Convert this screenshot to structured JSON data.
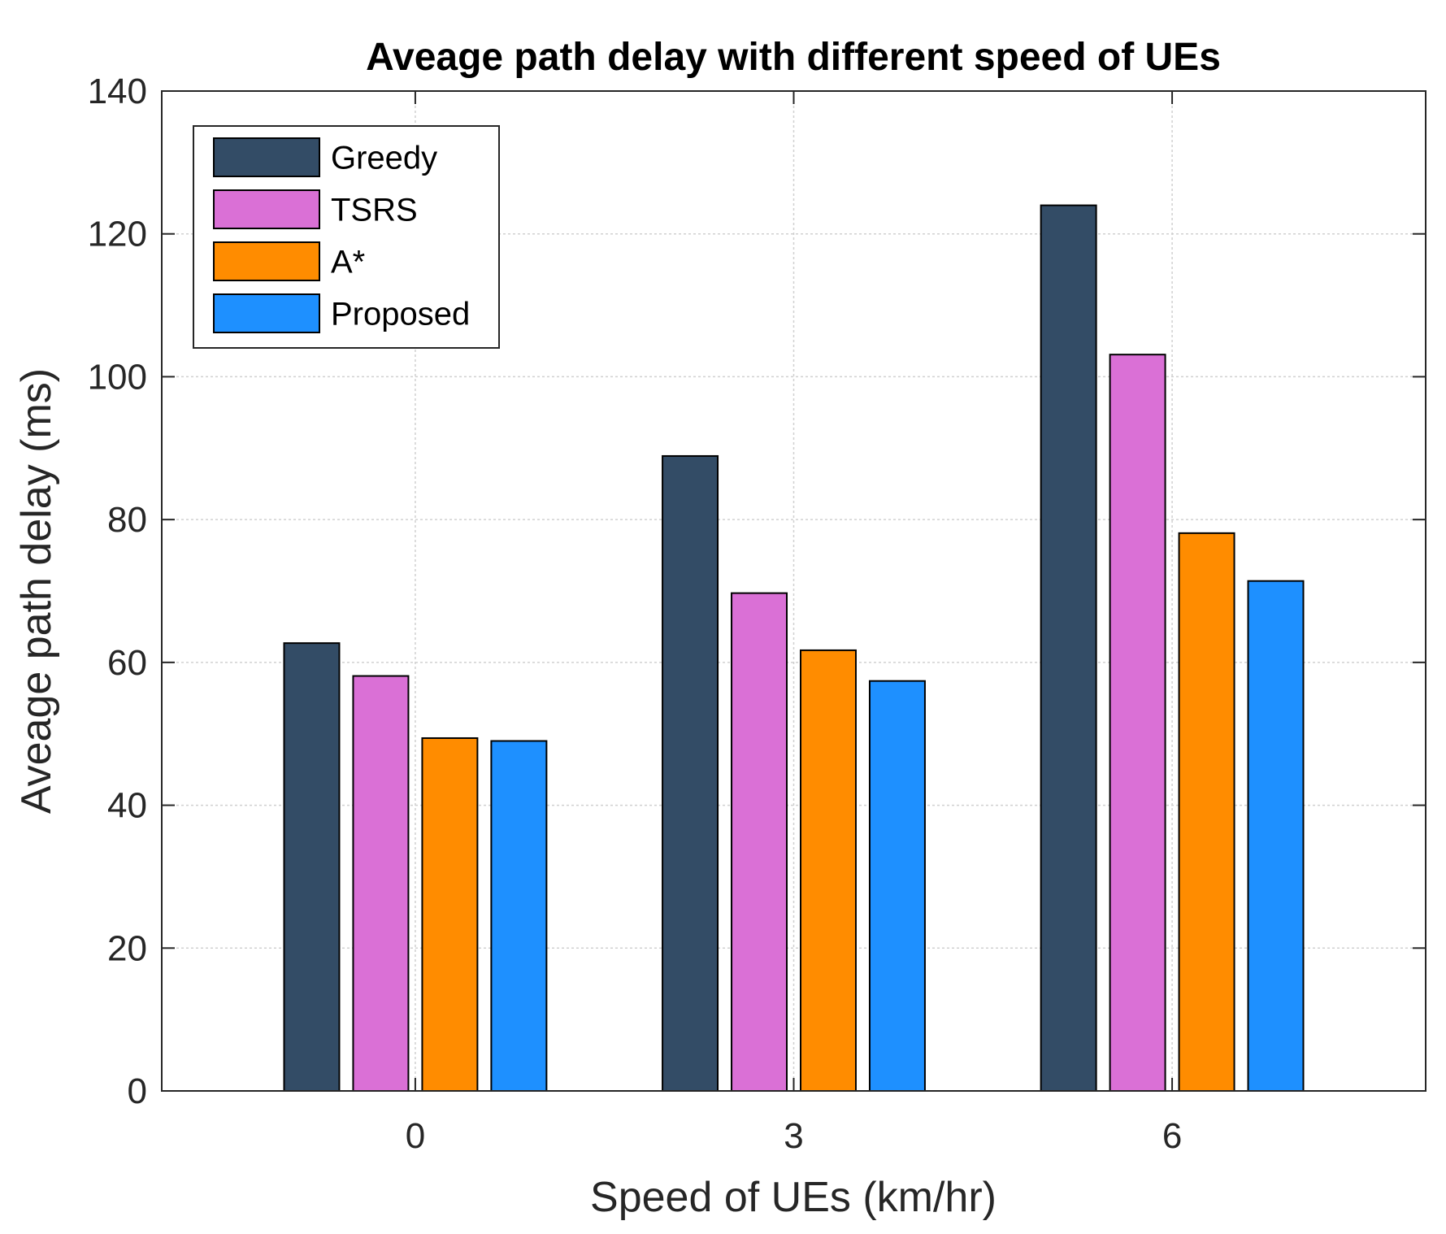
{
  "chart_data": {
    "type": "bar",
    "title": "Aveage path delay with different speed of UEs",
    "xlabel": "Speed of UEs (km/hr)",
    "ylabel": "Aveage path delay (ms)",
    "categories": [
      "0",
      "3",
      "6"
    ],
    "ylim": [
      0,
      140
    ],
    "yticks": [
      0,
      20,
      40,
      60,
      80,
      100,
      120,
      140
    ],
    "grid": true,
    "legend_position": "top-left",
    "series": [
      {
        "name": "Greedy",
        "color": "#334C66",
        "values": [
          62.7,
          88.9,
          124.0
        ]
      },
      {
        "name": "TSRS",
        "color": "#DA70D6",
        "values": [
          58.1,
          69.7,
          103.1
        ]
      },
      {
        "name": "A*",
        "color": "#FF8C00",
        "values": [
          49.4,
          61.7,
          78.1
        ]
      },
      {
        "name": "Proposed",
        "color": "#1E90FF",
        "values": [
          49.0,
          57.4,
          71.4
        ]
      }
    ]
  }
}
